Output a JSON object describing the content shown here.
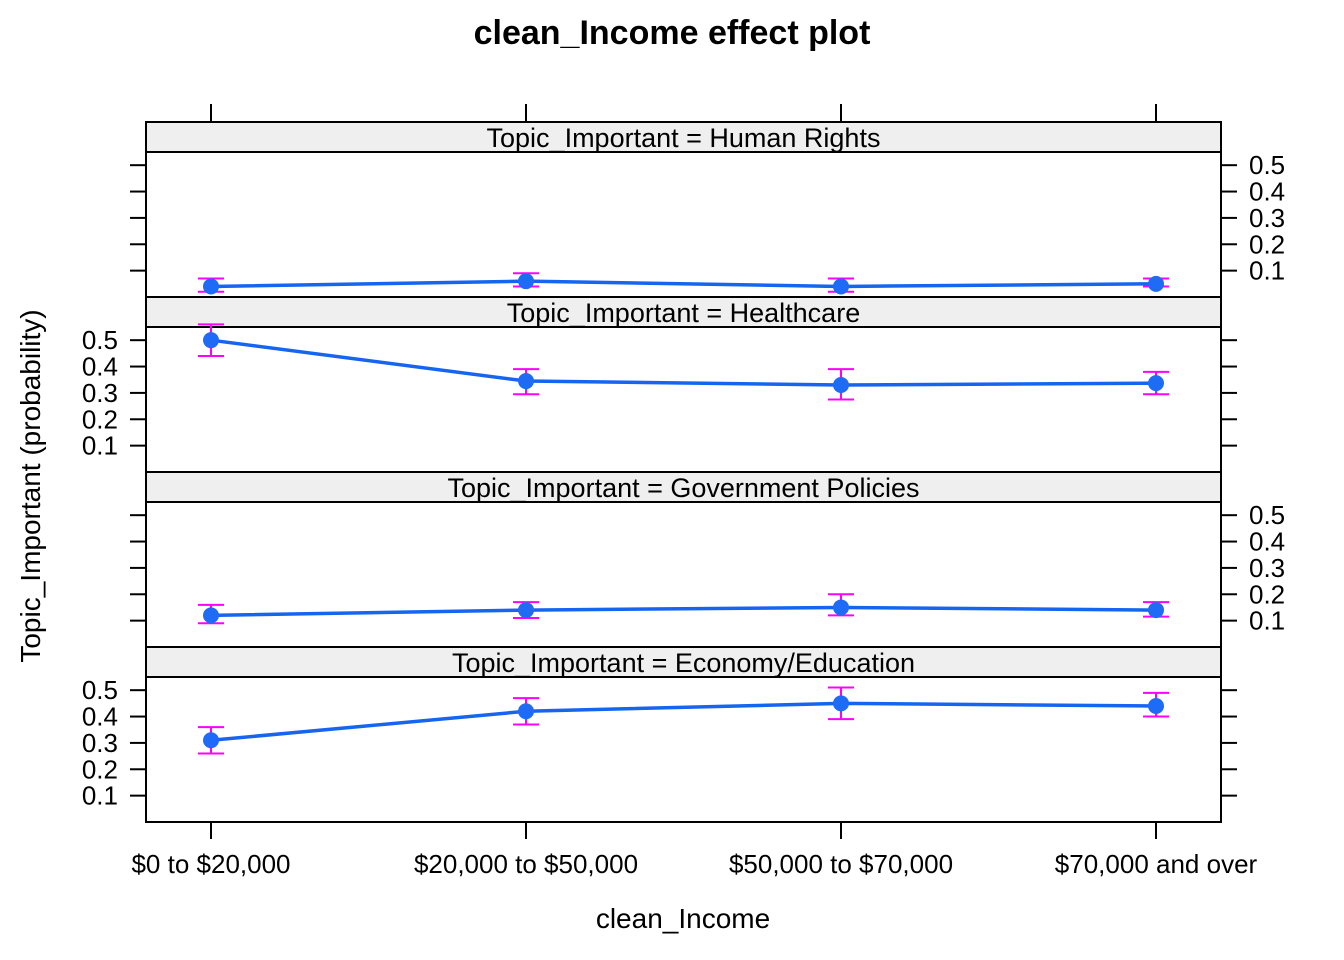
{
  "chart_data": {
    "type": "line",
    "title": "clean_Income effect plot",
    "xlabel": "clean_Income",
    "ylabel": "Topic_Important (probability)",
    "categories": [
      "$0 to $20,000",
      "$20,000 to $50,000",
      "$50,000 to $70,000",
      "$70,000 and over"
    ],
    "yticks": [
      "0.1",
      "0.2",
      "0.3",
      "0.4",
      "0.5"
    ],
    "ylim": [
      0.0,
      0.55
    ],
    "colors": {
      "line": "#1565f0",
      "point": "#1e6cf5",
      "errorbar": "#ff00ff",
      "strip": "#efefef"
    },
    "panels": [
      {
        "strip_label": "Topic_Important = Human Rights",
        "tick_labels_side": "right",
        "values": [
          0.04,
          0.06,
          0.04,
          0.05
        ],
        "lower": [
          0.02,
          0.04,
          0.02,
          0.04
        ],
        "upper": [
          0.07,
          0.09,
          0.07,
          0.07
        ]
      },
      {
        "strip_label": "Topic_Important = Healthcare",
        "tick_labels_side": "left",
        "values": [
          0.5,
          0.345,
          0.33,
          0.337
        ],
        "lower": [
          0.44,
          0.295,
          0.275,
          0.295
        ],
        "upper": [
          0.56,
          0.39,
          0.39,
          0.38
        ]
      },
      {
        "strip_label": "Topic_Important = Government Policies",
        "tick_labels_side": "right",
        "values": [
          0.12,
          0.14,
          0.15,
          0.14
        ],
        "lower": [
          0.09,
          0.11,
          0.12,
          0.115
        ],
        "upper": [
          0.16,
          0.17,
          0.2,
          0.17
        ]
      },
      {
        "strip_label": "Topic_Important = Economy/Education",
        "tick_labels_side": "left",
        "values": [
          0.31,
          0.42,
          0.45,
          0.44
        ],
        "lower": [
          0.26,
          0.37,
          0.39,
          0.4
        ],
        "upper": [
          0.36,
          0.47,
          0.51,
          0.49
        ]
      }
    ]
  }
}
